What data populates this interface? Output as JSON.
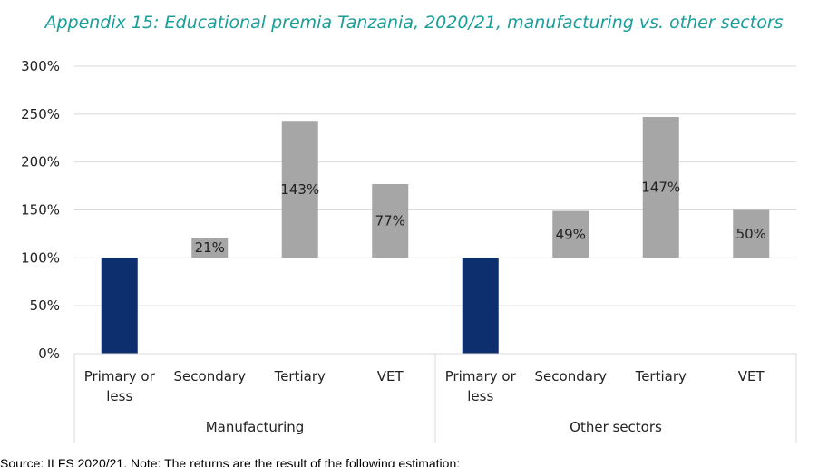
{
  "title": "Appendix 15: Educational premia Tanzania, 2020/21, manufacturing vs. other sectors",
  "source_note": "Source: ILFS 2020/21. Note: The returns are the result of the following estimation:",
  "colors": {
    "base": "#0d2f6e",
    "premium": "#a6a6a6",
    "grid": "#d9d9d9",
    "title": "#1a9e9a"
  },
  "chart_data": {
    "type": "bar",
    "title": "Appendix 15: Educational premia Tanzania, 2020/21, manufacturing vs. other sectors",
    "ylim": [
      0,
      300
    ],
    "yticks": [
      0,
      50,
      100,
      150,
      200,
      250,
      300
    ],
    "ytick_labels": [
      "0%",
      "50%",
      "100%",
      "150%",
      "200%",
      "250%",
      "300%"
    ],
    "grid": true,
    "groups": [
      {
        "name": "Manufacturing",
        "bars": [
          {
            "category": "Primary or less",
            "value": 100,
            "label": "",
            "kind": "base"
          },
          {
            "category": "Secondary",
            "value": 121,
            "label": "21%",
            "kind": "premium"
          },
          {
            "category": "Tertiary",
            "value": 243,
            "label": "143%",
            "kind": "premium"
          },
          {
            "category": "VET",
            "value": 177,
            "label": "77%",
            "kind": "premium"
          }
        ]
      },
      {
        "name": "Other sectors",
        "bars": [
          {
            "category": "Primary or less",
            "value": 100,
            "label": "",
            "kind": "base"
          },
          {
            "category": "Secondary",
            "value": 149,
            "label": "49%",
            "kind": "premium"
          },
          {
            "category": "Tertiary",
            "value": 247,
            "label": "147%",
            "kind": "premium"
          },
          {
            "category": "VET",
            "value": 150,
            "label": "50%",
            "kind": "premium"
          }
        ]
      }
    ]
  }
}
